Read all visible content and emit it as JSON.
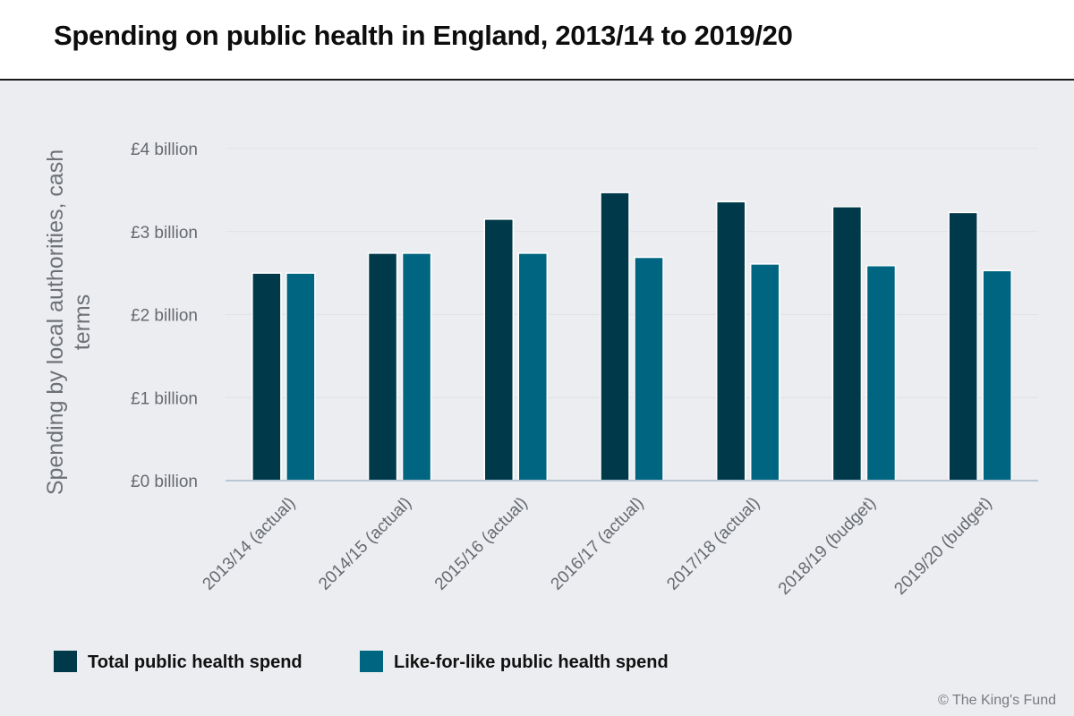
{
  "title": "Spending on public health in England, 2013/14 to 2019/20",
  "copyright": "© The King's Fund",
  "colors": {
    "total": "#003a4a",
    "like_for_like": "#006580",
    "background": "#ecedf0",
    "axis": "#b8c6d6"
  },
  "chart_data": {
    "type": "bar",
    "title": "Spending on public health in England, 2013/14 to 2019/20",
    "xlabel": "",
    "ylabel": "Spending by local authorities, cash terms",
    "ylim": [
      0,
      4
    ],
    "yticks": [
      0,
      1,
      2,
      3,
      4
    ],
    "ytick_labels": [
      "£0 billion",
      "£1 billion",
      "£2 billion",
      "£3 billion",
      "£4 billion"
    ],
    "grid": true,
    "legend_position": "bottom-left",
    "categories": [
      "2013/14 (actual)",
      "2014/15 (actual)",
      "2015/16 (actual)",
      "2016/17 (actual)",
      "2017/18 (actual)",
      "2018/19 (budget)",
      "2019/20 (budget)"
    ],
    "series": [
      {
        "name": "Total public health spend",
        "values": [
          2.5,
          2.74,
          3.15,
          3.47,
          3.36,
          3.3,
          3.23
        ]
      },
      {
        "name": "Like-for-like public health spend",
        "values": [
          2.5,
          2.74,
          2.74,
          2.69,
          2.61,
          2.59,
          2.53
        ]
      }
    ]
  }
}
